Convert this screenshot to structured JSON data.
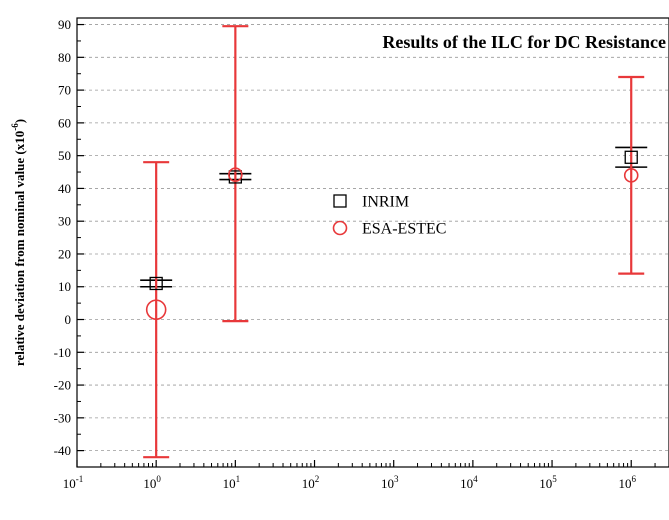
{
  "chart_data": {
    "type": "scatter",
    "title": "Results of the ILC for DC Resistance",
    "ylabel": "relative deviation from nominal value (x10",
    "ylabel_exp": "-6",
    "ylabel_close": ")",
    "xlabel": "",
    "x_scale": "log",
    "xlim": [
      0.1,
      3000000
    ],
    "ylim": [
      -45,
      92
    ],
    "x_ticks": [
      {
        "value": 0.1,
        "base": "10",
        "exp": "-1"
      },
      {
        "value": 1,
        "base": "10",
        "exp": "0"
      },
      {
        "value": 10,
        "base": "10",
        "exp": "1"
      },
      {
        "value": 100,
        "base": "10",
        "exp": "2"
      },
      {
        "value": 1000,
        "base": "10",
        "exp": "3"
      },
      {
        "value": 10000,
        "base": "10",
        "exp": "4"
      },
      {
        "value": 100000,
        "base": "10",
        "exp": "5"
      },
      {
        "value": 1000000,
        "base": "10",
        "exp": "6"
      }
    ],
    "y_ticks": [
      90,
      80,
      70,
      60,
      50,
      40,
      30,
      20,
      10,
      0,
      -10,
      -20,
      -30,
      -40
    ],
    "grid": "horizontal dashed",
    "legend": "center",
    "series": [
      {
        "name": "INRIM",
        "marker": "square",
        "color": "#000000",
        "points": [
          {
            "x": 1,
            "y": 11,
            "err_low": 10,
            "err_high": 12
          },
          {
            "x": 10,
            "y": 43.5,
            "err_low": 42.7,
            "err_high": 44.5
          },
          {
            "x": 1000000,
            "y": 49.5,
            "err_low": 46.5,
            "err_high": 52.5
          }
        ]
      },
      {
        "name": "ESA-ESTEC",
        "marker": "circle",
        "color": "#e8383a",
        "points": [
          {
            "x": 1,
            "y": 3,
            "err_low": -42,
            "err_high": 48
          },
          {
            "x": 10,
            "y": 44.2,
            "err_low": -0.5,
            "err_high": 89.5
          },
          {
            "x": 1000000,
            "y": 44,
            "err_low": 14,
            "err_high": 74
          }
        ]
      }
    ]
  }
}
